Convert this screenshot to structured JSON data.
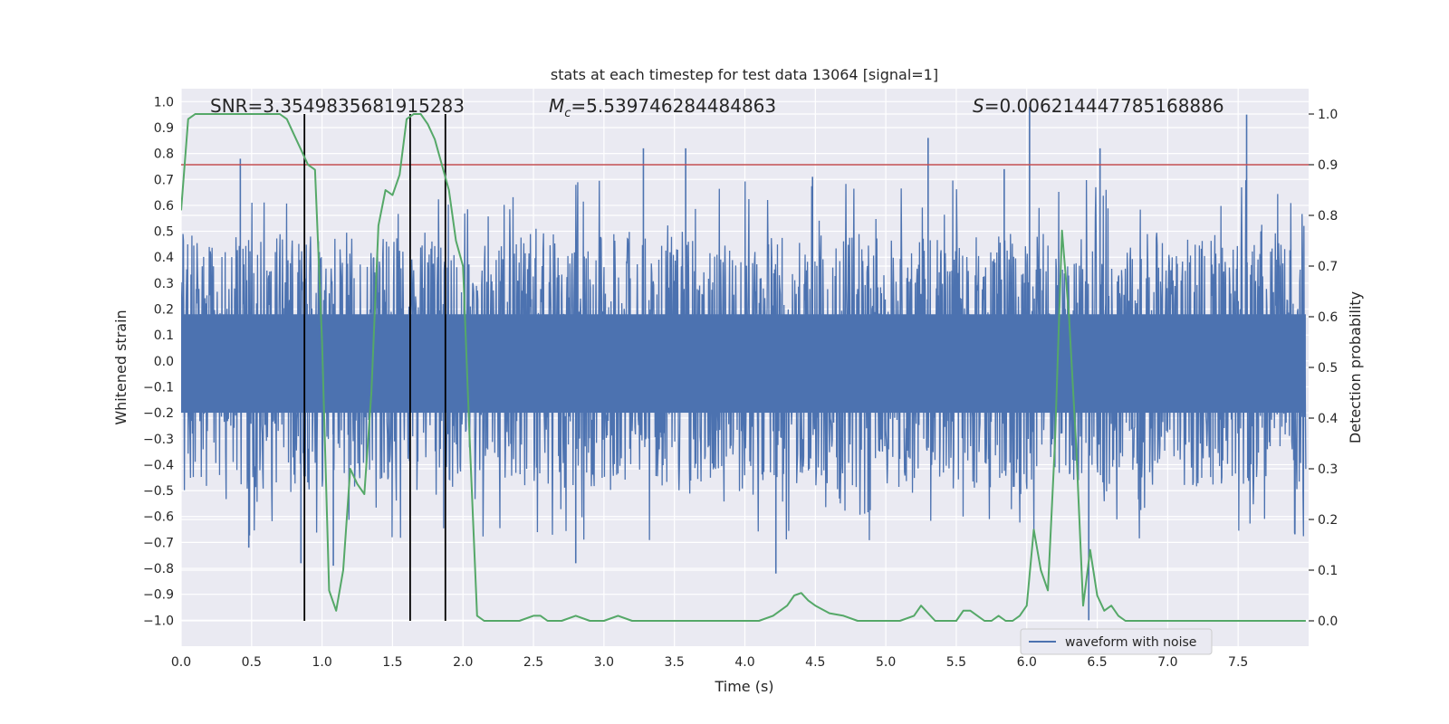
{
  "chart_data": {
    "type": "line",
    "title": "stats at each timestep for test data 13064 [signal=1]",
    "xlabel": "Time (s)",
    "ylabel_left": "Whitened strain",
    "ylabel_right": "Detection probability",
    "xlim": [
      0.0,
      8.0
    ],
    "ylim_left": [
      -1.1,
      1.05
    ],
    "ylim_right": [
      -0.05,
      1.05
    ],
    "x_ticks": [
      0.0,
      0.5,
      1.0,
      1.5,
      2.0,
      2.5,
      3.0,
      3.5,
      4.0,
      4.5,
      5.0,
      5.5,
      6.0,
      6.5,
      7.0,
      7.5
    ],
    "x_tick_labels": [
      "0.0",
      "0.5",
      "1.0",
      "1.5",
      "2.0",
      "2.5",
      "3.0",
      "3.5",
      "4.0",
      "4.5",
      "5.0",
      "5.5",
      "6.0",
      "6.5",
      "7.0",
      "7.5"
    ],
    "y_left_ticks": [
      -1.0,
      -0.9,
      -0.8,
      -0.7,
      -0.6,
      -0.5,
      -0.4,
      -0.3,
      -0.2,
      -0.1,
      0.0,
      0.1,
      0.2,
      0.3,
      0.4,
      0.5,
      0.6,
      0.7,
      0.8,
      0.9,
      1.0
    ],
    "y_left_tick_labels": [
      "−1.0",
      "−0.9",
      "−0.8",
      "−0.7",
      "−0.6",
      "−0.5",
      "−0.4",
      "−0.3",
      "−0.2",
      "−0.1",
      "0.0",
      "0.1",
      "0.2",
      "0.3",
      "0.4",
      "0.5",
      "0.6",
      "0.7",
      "0.8",
      "0.9",
      "1.0"
    ],
    "y_right_ticks": [
      0.0,
      0.1,
      0.2,
      0.3,
      0.4,
      0.5,
      0.6,
      0.7,
      0.8,
      0.9,
      1.0
    ],
    "y_right_tick_labels": [
      "0.0",
      "0.1",
      "0.2",
      "0.3",
      "0.4",
      "0.5",
      "0.6",
      "0.7",
      "0.8",
      "0.9",
      "1.0"
    ],
    "grid": true,
    "annotations": {
      "snr_label": "SNR=3.3549835681915283",
      "mc_symbol": "M",
      "mc_subscript": "c",
      "mc_value": "=5.539746284484863",
      "s_symbol": "S",
      "s_value": "=0.006214447785168886"
    },
    "legend": {
      "placement": "lower-right",
      "entries": [
        "waveform with noise"
      ]
    },
    "threshold_right": 0.9,
    "vertical_lines_x": [
      0.875,
      1.625,
      1.875
    ],
    "waveform": {
      "name": "waveform with noise",
      "color": "#4c72b0",
      "t_range": [
        0.0,
        7.98
      ],
      "envelope_typical": [
        -0.45,
        0.45
      ],
      "extreme_peaks": [
        {
          "t": 0.85,
          "v": -0.78
        },
        {
          "t": 0.42,
          "v": 0.78
        },
        {
          "t": 1.08,
          "v": -0.79
        },
        {
          "t": 3.28,
          "v": 0.82
        },
        {
          "t": 3.58,
          "v": 0.82
        },
        {
          "t": 4.22,
          "v": -0.82
        },
        {
          "t": 5.3,
          "v": 0.86
        },
        {
          "t": 6.02,
          "v": 0.98
        },
        {
          "t": 6.44,
          "v": -1.0
        },
        {
          "t": 7.56,
          "v": 0.95
        },
        {
          "t": 6.52,
          "v": 0.82
        },
        {
          "t": 2.8,
          "v": -0.78
        },
        {
          "t": 0.48,
          "v": -0.72
        },
        {
          "t": 4.48,
          "v": 0.71
        },
        {
          "t": 5.84,
          "v": 0.74
        }
      ]
    },
    "probability": {
      "color": "#55a868",
      "t": [
        0.0,
        0.05,
        0.1,
        0.15,
        0.2,
        0.3,
        0.4,
        0.5,
        0.6,
        0.7,
        0.75,
        0.8,
        0.85,
        0.9,
        0.95,
        1.0,
        1.05,
        1.1,
        1.15,
        1.2,
        1.25,
        1.3,
        1.35,
        1.4,
        1.45,
        1.5,
        1.55,
        1.6,
        1.65,
        1.7,
        1.75,
        1.8,
        1.85,
        1.9,
        1.95,
        2.0,
        2.05,
        2.1,
        2.15,
        2.2,
        2.3,
        2.4,
        2.5,
        2.55,
        2.6,
        2.65,
        2.7,
        2.8,
        2.9,
        3.0,
        3.1,
        3.2,
        3.3,
        3.5,
        3.7,
        3.9,
        4.0,
        4.1,
        4.2,
        4.3,
        4.35,
        4.4,
        4.45,
        4.5,
        4.6,
        4.7,
        4.8,
        4.9,
        5.0,
        5.1,
        5.2,
        5.25,
        5.3,
        5.35,
        5.4,
        5.45,
        5.5,
        5.55,
        5.6,
        5.65,
        5.7,
        5.75,
        5.8,
        5.85,
        5.9,
        5.95,
        6.0,
        6.05,
        6.1,
        6.15,
        6.2,
        6.25,
        6.3,
        6.35,
        6.4,
        6.45,
        6.5,
        6.55,
        6.6,
        6.65,
        6.7,
        6.8,
        6.9,
        7.0,
        7.1,
        7.2,
        7.3,
        7.4,
        7.5,
        7.6,
        7.7,
        7.8,
        7.9,
        7.98
      ],
      "values": [
        0.81,
        0.99,
        1.0,
        1.0,
        1.0,
        1.0,
        1.0,
        1.0,
        1.0,
        1.0,
        0.99,
        0.96,
        0.93,
        0.9,
        0.89,
        0.55,
        0.06,
        0.02,
        0.1,
        0.3,
        0.27,
        0.25,
        0.45,
        0.78,
        0.85,
        0.84,
        0.88,
        0.99,
        1.0,
        1.0,
        0.98,
        0.95,
        0.9,
        0.85,
        0.75,
        0.7,
        0.34,
        0.01,
        0.0,
        0.0,
        0.0,
        0.0,
        0.01,
        0.01,
        0.0,
        0.0,
        0.0,
        0.01,
        0.0,
        0.0,
        0.01,
        0.0,
        0.0,
        0.0,
        0.0,
        0.0,
        0.0,
        0.0,
        0.01,
        0.03,
        0.05,
        0.055,
        0.04,
        0.03,
        0.015,
        0.01,
        0.0,
        0.0,
        0.0,
        0.0,
        0.01,
        0.03,
        0.015,
        0.0,
        0.0,
        0.0,
        0.0,
        0.02,
        0.02,
        0.01,
        0.0,
        0.0,
        0.01,
        0.0,
        0.0,
        0.01,
        0.03,
        0.18,
        0.1,
        0.06,
        0.35,
        0.77,
        0.6,
        0.35,
        0.03,
        0.14,
        0.05,
        0.02,
        0.03,
        0.01,
        0.0,
        0.0,
        0.0,
        0.0,
        0.0,
        0.0,
        0.0,
        0.0,
        0.0,
        0.0,
        0.0,
        0.0,
        0.0,
        0.0
      ]
    },
    "colors": {
      "background": "#eaeaf2",
      "grid": "#ffffff",
      "waveform": "#4c72b0",
      "probability": "#55a868",
      "threshold": "#c44e52",
      "vertical_lines": "#000000"
    }
  }
}
